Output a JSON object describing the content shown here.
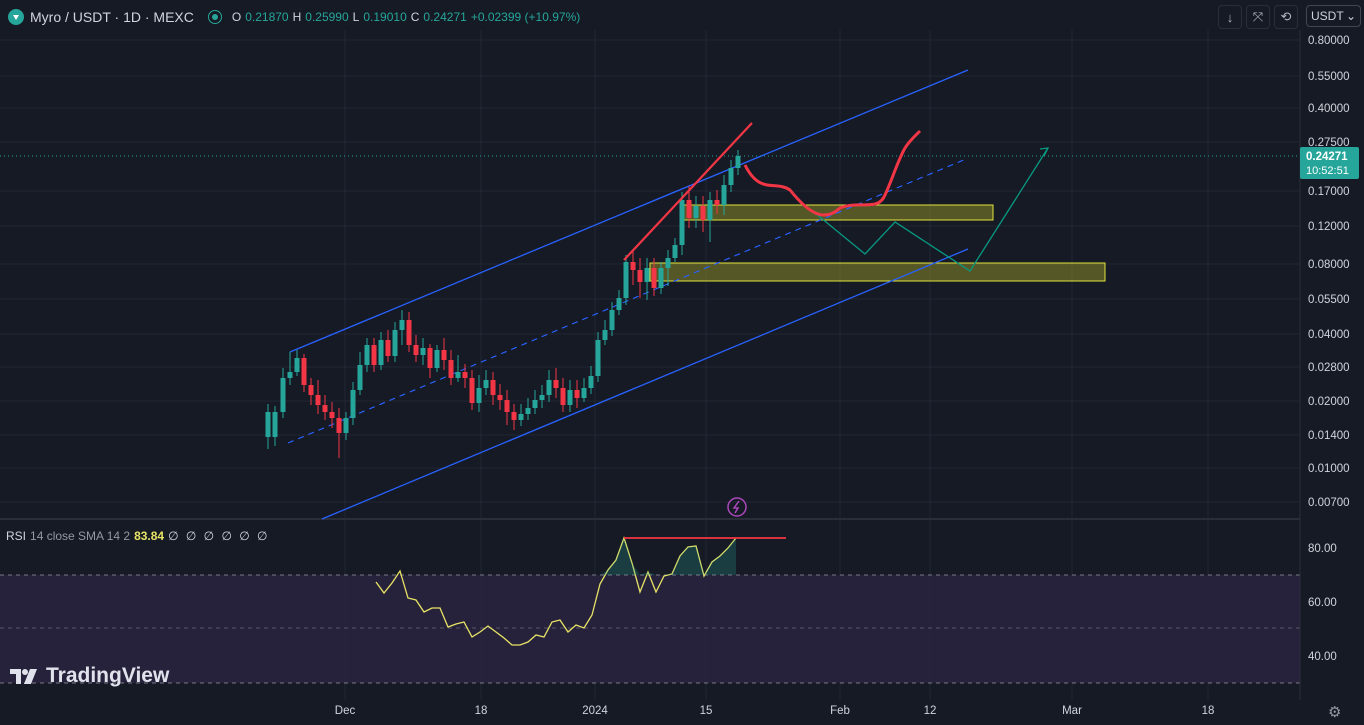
{
  "header": {
    "symbol": "Myro / USDT · 1D · MEXC",
    "open_label": "O",
    "open": "0.21870",
    "high_label": "H",
    "high": "0.25990",
    "low_label": "L",
    "low": "0.19010",
    "close_label": "C",
    "close": "0.24271",
    "change": "+0.02399 (+10.97%)"
  },
  "toolbar": {
    "currency": "USDT",
    "icons": [
      "arrow-down-icon",
      "fullscreen-icon",
      "screenshot-icon"
    ]
  },
  "price_axis": {
    "ticks": [
      "0.80000",
      "0.55000",
      "0.40000",
      "0.27500",
      "0.17000",
      "0.12000",
      "0.08000",
      "0.05500",
      "0.04000",
      "0.02800",
      "0.02000",
      "0.01400",
      "0.01000",
      "0.00700"
    ],
    "current_price": "0.24271",
    "countdown": "10:52:51",
    "scale": "log"
  },
  "time_axis": [
    "Dec",
    "18",
    "2024",
    "15",
    "Feb",
    "12",
    "Mar",
    "18"
  ],
  "rsi": {
    "name": "RSI",
    "params": "14 close SMA 14 2",
    "value": "83.84",
    "na": "∅ ∅ ∅ ∅ ∅ ∅",
    "ticks": [
      "80.00",
      "60.00",
      "40.00"
    ],
    "upper_band": 70,
    "lower_band": 30
  },
  "brand": {
    "name": "TradingView"
  },
  "colors": {
    "bg": "#161a25",
    "up": "#26a69a",
    "down": "#f23645",
    "channel": "#2962ff",
    "rsi_line": "#e8e365"
  },
  "chart_data": {
    "type": "candlestick",
    "note_date_range": "Dec 2023 – Jan 2024, daily",
    "current_close": 0.24271
  }
}
